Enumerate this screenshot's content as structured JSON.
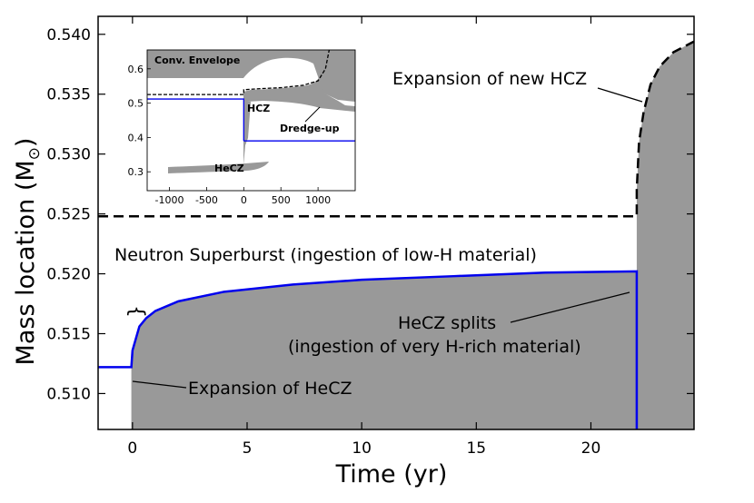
{
  "chart_data": [
    {
      "type": "area",
      "title": "",
      "xlabel": "Time (yr)",
      "ylabel_prefix": "Mass location (M",
      "ylabel_symbol": "⊙",
      "ylabel_suffix": ")",
      "xlim": [
        -1.5,
        24.5
      ],
      "ylim": [
        0.507,
        0.5415
      ],
      "xticks": [
        0,
        5,
        10,
        15,
        20
      ],
      "xtick_labels": [
        "0",
        "5",
        "10",
        "15",
        "20"
      ],
      "yticks": [
        0.51,
        0.515,
        0.52,
        0.525,
        0.53,
        0.535,
        0.54
      ],
      "ytick_labels": [
        "0.510",
        "0.515",
        "0.520",
        "0.525",
        "0.530",
        "0.535",
        "0.540"
      ],
      "series": [
        {
          "name": "HeCZ upper boundary",
          "color": "#0000ee",
          "style": "solid",
          "x": [
            -1.5,
            -0.05,
            -0.05,
            0.0,
            0.3,
            0.6,
            1.0,
            2.0,
            4.0,
            7.0,
            10.0,
            14.0,
            18.0,
            22.0,
            22.0
          ],
          "y": [
            0.5122,
            0.5122,
            0.5122,
            0.5136,
            0.5156,
            0.5163,
            0.5169,
            0.5177,
            0.5185,
            0.5191,
            0.5195,
            0.5198,
            0.5201,
            0.5202,
            0.507
          ]
        },
        {
          "name": "HCZ lower boundary",
          "color": "#000000",
          "style": "dashed",
          "x": [
            -1.5,
            22.0,
            22.0,
            22.1,
            22.3,
            22.6,
            23.0,
            23.6,
            24.2,
            24.5
          ],
          "y": [
            0.5248,
            0.5248,
            0.527,
            0.531,
            0.5335,
            0.5358,
            0.5373,
            0.5385,
            0.5391,
            0.5394
          ]
        }
      ],
      "fill_color": "#999999",
      "annotations": [
        {
          "text": "Expansion of new HCZ"
        },
        {
          "text": "Neutron Superburst (ingestion of low-H material)"
        },
        {
          "text": "HeCZ splits"
        },
        {
          "text": "(ingestion of very H-rich material)"
        },
        {
          "text": "Expansion of HeCZ"
        },
        {
          "text": "}"
        }
      ]
    },
    {
      "type": "area",
      "title": "",
      "xlabel": "",
      "ylabel": "",
      "xlim": [
        -1300,
        1500
      ],
      "ylim": [
        0.245,
        0.655
      ],
      "xticks": [
        -1000,
        -500,
        0,
        500,
        1000
      ],
      "xtick_labels": [
        "-1000",
        "-500",
        "0",
        "500",
        "1000"
      ],
      "yticks": [
        0.3,
        0.4,
        0.5,
        0.6
      ],
      "ytick_labels": [
        "0.3",
        "0.4",
        "0.5",
        "0.6"
      ],
      "series": [
        {
          "name": "HeCZ boundary (before)",
          "color": "#0000ee",
          "style": "solid",
          "x": [
            -1300,
            0,
            0
          ],
          "y": [
            0.512,
            0.512,
            0.39
          ]
        },
        {
          "name": "HeCZ boundary (after)",
          "color": "#0000ee",
          "style": "solid",
          "x": [
            0,
            1500
          ],
          "y": [
            0.39,
            0.39
          ]
        },
        {
          "name": "HCZ boundary",
          "color": "#000000",
          "style": "dashed",
          "x": [
            -1300,
            0,
            0,
            200,
            500,
            800,
            1000,
            1100,
            1150
          ],
          "y": [
            0.525,
            0.525,
            0.539,
            0.542,
            0.545,
            0.552,
            0.565,
            0.6,
            0.655
          ]
        }
      ],
      "annotations": [
        {
          "text": "Conv. Envelope"
        },
        {
          "text": "HCZ"
        },
        {
          "text": "Dredge-up"
        },
        {
          "text": "HeCZ"
        }
      ]
    }
  ]
}
